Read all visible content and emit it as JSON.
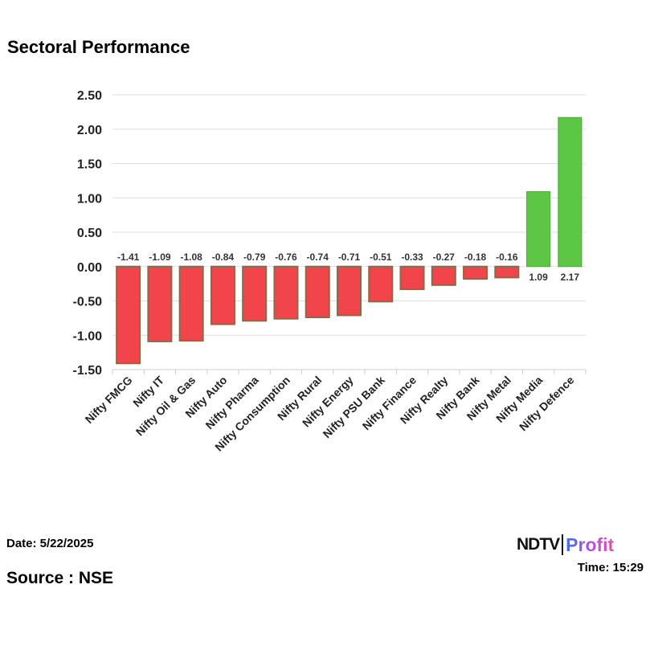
{
  "chart_data": {
    "type": "bar",
    "title": "Sectoral Performance",
    "categories": [
      "Nifty FMCG",
      "Nifty IT",
      "Nifty Oil & Gas",
      "Nifty Auto",
      "Nifty Pharma",
      "Nifty Consumption",
      "Nifty Rural",
      "Nifty Energy",
      "Nifty PSU Bank",
      "Nifty Finance",
      "Nifty Realty",
      "Nifty Bank",
      "Nifty Metal",
      "Nifty Media",
      "Nifty Defence"
    ],
    "values": [
      -1.41,
      -1.09,
      -1.08,
      -0.84,
      -0.79,
      -0.76,
      -0.74,
      -0.71,
      -0.51,
      -0.33,
      -0.27,
      -0.18,
      -0.16,
      1.09,
      2.17
    ],
    "ylim": [
      -1.5,
      2.5
    ],
    "yticks": [
      "2.50",
      "2.00",
      "1.50",
      "1.00",
      "0.50",
      "0.00",
      "-0.50",
      "-1.00",
      "-1.50"
    ],
    "xlabel": "",
    "ylabel": "",
    "grid": "horizontal",
    "colors": {
      "negative": "#f2444b",
      "negative_border": "#8b6a4a",
      "positive": "#5dc745"
    }
  },
  "footer": {
    "date": "Date: 5/22/2025",
    "source": "Source : NSE",
    "time": "Time: 15:29",
    "logo_text": "NDTV Profit"
  }
}
